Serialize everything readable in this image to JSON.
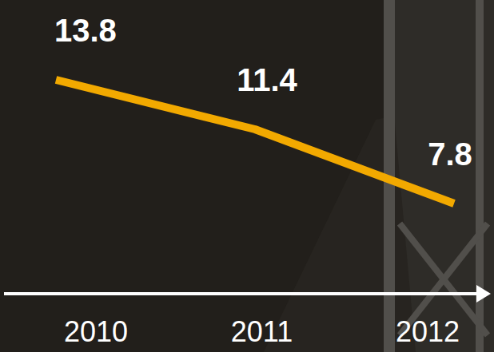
{
  "chart_data": {
    "type": "line",
    "categories": [
      "2010",
      "2011",
      "2012"
    ],
    "values": [
      13.8,
      11.4,
      7.8
    ],
    "color": "#f2a900",
    "data_labels": true,
    "tick_labels": "x",
    "grid": false
  }
}
